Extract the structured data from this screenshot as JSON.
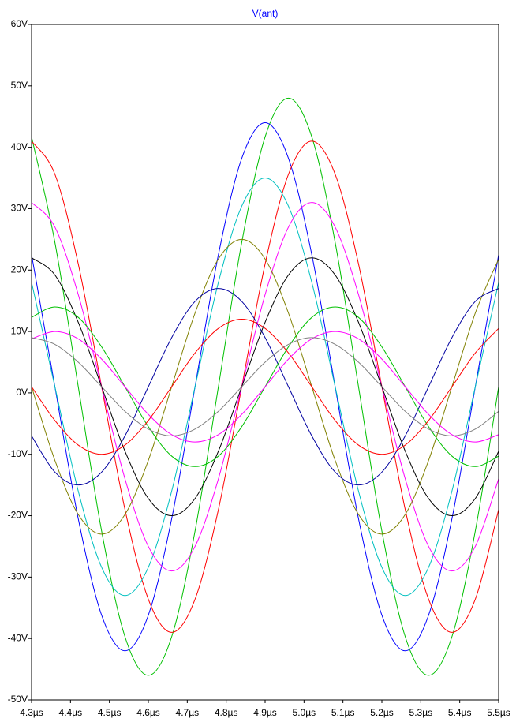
{
  "chart_data": {
    "type": "line",
    "title": "V(ant)",
    "x": [
      4.3,
      4.36,
      4.42,
      4.48,
      4.54,
      4.6,
      4.66,
      4.72,
      4.78,
      4.84,
      4.9,
      4.96,
      5.02,
      5.08,
      5.14,
      5.2,
      5.26,
      5.32,
      5.38,
      5.44,
      5.5
    ],
    "xlim": [
      4.3,
      5.5
    ],
    "xticks": [
      {
        "value": 4.3,
        "label": "4.3µs"
      },
      {
        "value": 4.4,
        "label": "4.4µs"
      },
      {
        "value": 4.5,
        "label": "4.5µs"
      },
      {
        "value": 4.6,
        "label": "4.6µs"
      },
      {
        "value": 4.7,
        "label": "4.7µs"
      },
      {
        "value": 4.8,
        "label": "4.8µs"
      },
      {
        "value": 4.9,
        "label": "4.9µs"
      },
      {
        "value": 5.0,
        "label": "5.0µs"
      },
      {
        "value": 5.1,
        "label": "5.1µs"
      },
      {
        "value": 5.2,
        "label": "5.2µs"
      },
      {
        "value": 5.3,
        "label": "5.3µs"
      },
      {
        "value": 5.4,
        "label": "5.4µs"
      },
      {
        "value": 5.5,
        "label": "5.5µs"
      }
    ],
    "ylim": [
      -50,
      60
    ],
    "yticks": [
      {
        "value": 60,
        "label": "60V"
      },
      {
        "value": 50,
        "label": "50V"
      },
      {
        "value": 40,
        "label": "40V"
      },
      {
        "value": 30,
        "label": "30V"
      },
      {
        "value": 20,
        "label": "20V"
      },
      {
        "value": 10,
        "label": "10V"
      },
      {
        "value": 0,
        "label": "0V"
      },
      {
        "value": -10,
        "label": "-10V"
      },
      {
        "value": -20,
        "label": "-20V"
      },
      {
        "value": -30,
        "label": "-30V"
      },
      {
        "value": -40,
        "label": "-40V"
      },
      {
        "value": -50,
        "label": "-50V"
      }
    ],
    "grid": false,
    "series": [
      {
        "color": "#00c000",
        "values": [
          41.7,
          24.5,
          1,
          -22.5,
          -39.7,
          -46,
          -39.7,
          -22.5,
          1,
          24.5,
          41.7,
          48,
          41.7,
          24.5,
          1,
          -22.5,
          -39.7,
          -46,
          -39.7,
          -22.5,
          1
        ]
      },
      {
        "color": "#0000ff",
        "values": [
          22.5,
          1,
          -20.5,
          -36.2,
          -42,
          -36.2,
          -20.5,
          1,
          22.5,
          38.2,
          44,
          38.2,
          22.5,
          1,
          -20.5,
          -36.2,
          -42,
          -36.2,
          -20.5,
          1,
          22.5
        ]
      },
      {
        "color": "#ff0000",
        "values": [
          41,
          35.6,
          21,
          1,
          -19,
          -33.6,
          -39,
          -33.6,
          -19,
          1,
          21,
          35.6,
          41,
          35.6,
          21,
          1,
          -19,
          -33.6,
          -39,
          -33.6,
          -19
        ]
      },
      {
        "color": "#00c0c0",
        "values": [
          18,
          1,
          -16,
          -28.4,
          -33,
          -28.4,
          -16,
          1,
          18,
          30.4,
          35,
          30.4,
          18,
          1,
          -16,
          -28.4,
          -33,
          -28.4,
          -16,
          1,
          18
        ]
      },
      {
        "color": "#ff00ff",
        "values": [
          31,
          27,
          16,
          1,
          -14,
          -25,
          -29,
          -25,
          -14,
          1,
          16,
          27,
          31,
          27,
          16,
          1,
          -14,
          -25,
          -29,
          -25,
          -14
        ]
      },
      {
        "color": "#808000",
        "values": [
          1,
          -11,
          -19.8,
          -23,
          -19.8,
          -11,
          1,
          13,
          21.8,
          25,
          21.8,
          13,
          1,
          -11,
          -19.8,
          -23,
          -19.8,
          -11,
          1,
          13,
          21.8
        ]
      },
      {
        "color": "#000000",
        "values": [
          22,
          19.2,
          11.5,
          1,
          -9.5,
          -17.2,
          -20,
          -17.2,
          -9.5,
          1,
          11.5,
          19.2,
          22,
          19.2,
          11.5,
          1,
          -9.5,
          -17.2,
          -20,
          -17.2,
          -9.5
        ]
      },
      {
        "color": "#0000a0",
        "values": [
          -7,
          -12.9,
          -15,
          -12.9,
          -7,
          1,
          9,
          14.9,
          17,
          14.9,
          9,
          1,
          -7,
          -12.9,
          -15,
          -12.9,
          -7,
          1,
          9,
          14.9,
          17
        ]
      },
      {
        "color": "#00c000",
        "values": [
          12.3,
          14,
          12.3,
          7.5,
          1,
          -5.5,
          -10.3,
          -12,
          -10.3,
          -5.5,
          1,
          7.5,
          12.3,
          14,
          12.3,
          7.5,
          1,
          -5.5,
          -10.3,
          -12,
          -10.3
        ]
      },
      {
        "color": "#ff0000",
        "values": [
          1,
          -4.5,
          -8.5,
          -10,
          -8.5,
          -4.5,
          1,
          6.5,
          10.5,
          12,
          10.5,
          6.5,
          1,
          -4.5,
          -8.5,
          -10,
          -8.5,
          -4.5,
          1,
          6.5,
          10.5
        ]
      },
      {
        "color": "#ff00ff",
        "values": [
          8.8,
          10,
          8.8,
          5.5,
          1,
          -3.5,
          -6.8,
          -8,
          -6.8,
          -3.5,
          1,
          5.5,
          8.8,
          10,
          8.8,
          5.5,
          1,
          -3.5,
          -6.8,
          -8,
          -6.8
        ]
      },
      {
        "color": "#808080",
        "values": [
          9,
          7.9,
          5,
          1,
          -3,
          -5.9,
          -7,
          -5.9,
          -3,
          1,
          5,
          7.9,
          9,
          7.9,
          5,
          1,
          -3,
          -5.9,
          -7,
          -5.9,
          -3
        ]
      }
    ]
  }
}
